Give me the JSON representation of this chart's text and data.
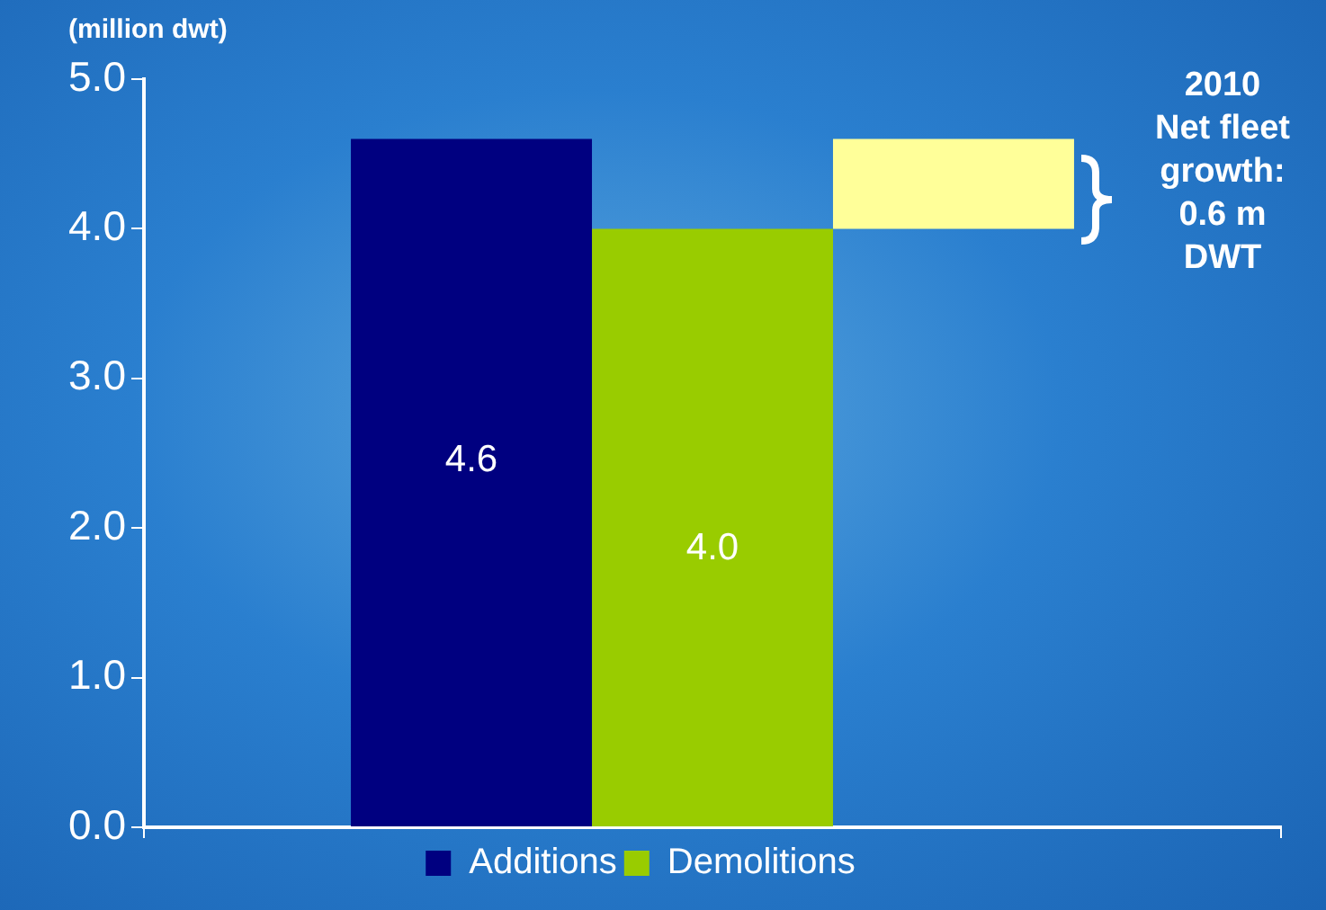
{
  "chart_data": {
    "type": "bar",
    "ylabel": "(million dwt)",
    "categories": [
      null
    ],
    "series": [
      {
        "name": "Additions",
        "color": "#000080",
        "values": [
          4.6
        ],
        "value_labels": [
          "4.6"
        ]
      },
      {
        "name": "Demolitions",
        "color": "#99cc00",
        "values": [
          4.0
        ],
        "value_labels": [
          "4.0"
        ]
      },
      {
        "color": "#ffff99",
        "values": [
          0.6
        ],
        "base": [
          4.0
        ]
      }
    ],
    "ylim": [
      0,
      5
    ],
    "yticks": [
      {
        "value": 0,
        "label": "0.0"
      },
      {
        "value": 1,
        "label": "1.0"
      },
      {
        "value": 2,
        "label": "2.0"
      },
      {
        "value": 3,
        "label": "3.0"
      },
      {
        "value": 4,
        "label": "4.0"
      },
      {
        "value": 5,
        "label": "5.0"
      }
    ],
    "tick_labels": "y",
    "grid": false,
    "legend": "bottom",
    "annotations": [
      "2010\nNet fleet\ngrowth:\n0.6 m\nDWT"
    ]
  }
}
